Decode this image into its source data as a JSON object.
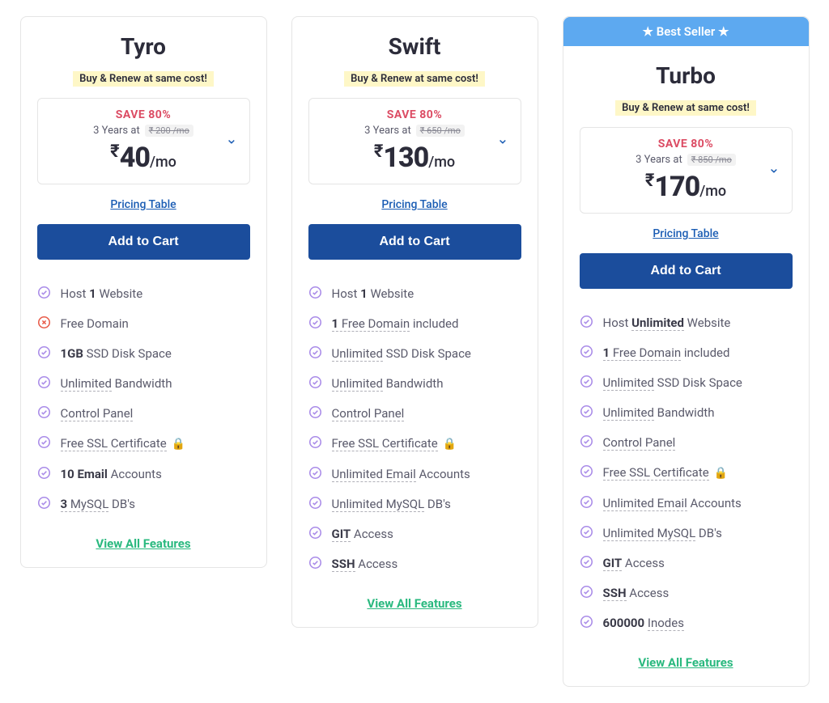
{
  "colors": {
    "badge_bg": "#5da9f0",
    "card_border": "#e5e5e5",
    "title_color": "#2c2c3a",
    "promo_bg": "#fef7c7",
    "save_color": "#dc4c64",
    "button_bg": "#1b4d9c",
    "link_blue": "#1b5db4",
    "link_green": "#2ab97f",
    "text_gray": "#5a5a6b",
    "icon_purple": "#a98be8",
    "icon_red": "#e85c4a"
  },
  "shared": {
    "promo_text": "Buy & Renew at same cost!",
    "save_label": "SAVE 80%",
    "duration_label": "3 Years at",
    "per_month": "/mo",
    "pricing_table": "Pricing Table",
    "add_to_cart": "Add to Cart",
    "view_all": "View All Features",
    "best_seller": "★ Best Seller ★",
    "currency": "₹"
  },
  "plans": [
    {
      "name": "Tyro",
      "original_price": "₹ 200 /mo",
      "price": "40",
      "best_seller": false,
      "features": [
        {
          "icon": "check",
          "html": "Host <b>1</b> Website"
        },
        {
          "icon": "cross",
          "html": "Free Domain"
        },
        {
          "icon": "check",
          "html": "<b>1GB</b> SSD Disk Space"
        },
        {
          "icon": "check",
          "html": "<u>Unlimited</u> Bandwidth"
        },
        {
          "icon": "check",
          "html": "<u>Control Panel</u>"
        },
        {
          "icon": "check",
          "html": "<u>Free SSL Certificate</u> 🔒"
        },
        {
          "icon": "check",
          "html": "<b>10 Email</b> Accounts"
        },
        {
          "icon": "check",
          "html": "<u><b>3</b> MySQL</u> DB's"
        }
      ]
    },
    {
      "name": "Swift",
      "original_price": "₹ 650 /mo",
      "price": "130",
      "best_seller": false,
      "features": [
        {
          "icon": "check",
          "html": "Host <b>1</b> Website"
        },
        {
          "icon": "check",
          "html": "<u><b>1</b> Free Domain</u> included"
        },
        {
          "icon": "check",
          "html": "<u>Unlimited</u> SSD Disk Space"
        },
        {
          "icon": "check",
          "html": "<u>Unlimited</u> Bandwidth"
        },
        {
          "icon": "check",
          "html": "<u>Control Panel</u>"
        },
        {
          "icon": "check",
          "html": "<u>Free SSL Certificate</u> 🔒"
        },
        {
          "icon": "check",
          "html": "<u>Unlimited Email</u> Accounts"
        },
        {
          "icon": "check",
          "html": "<u>Unlimited MySQL</u> DB's"
        },
        {
          "icon": "check",
          "html": "<u><b>GIT</b></u> Access"
        },
        {
          "icon": "check",
          "html": "<u><b>SSH</b></u> Access"
        }
      ]
    },
    {
      "name": "Turbo",
      "original_price": "₹ 850 /mo",
      "price": "170",
      "best_seller": true,
      "features": [
        {
          "icon": "check",
          "html": "Host <u><b>Unlimited</b></u> Website"
        },
        {
          "icon": "check",
          "html": "<u><b>1</b> Free Domain</u> included"
        },
        {
          "icon": "check",
          "html": "<u>Unlimited</u> SSD Disk Space"
        },
        {
          "icon": "check",
          "html": "<u>Unlimited</u> Bandwidth"
        },
        {
          "icon": "check",
          "html": "<u>Control Panel</u>"
        },
        {
          "icon": "check",
          "html": "<u>Free SSL Certificate</u> 🔒"
        },
        {
          "icon": "check",
          "html": "<u>Unlimited Email</u> Accounts"
        },
        {
          "icon": "check",
          "html": "<u>Unlimited MySQL</u> DB's"
        },
        {
          "icon": "check",
          "html": "<u><b>GIT</b></u> Access"
        },
        {
          "icon": "check",
          "html": "<u><b>SSH</b></u> Access"
        },
        {
          "icon": "check",
          "html": "<b>600000</b> <u>Inodes</u>"
        }
      ]
    }
  ]
}
